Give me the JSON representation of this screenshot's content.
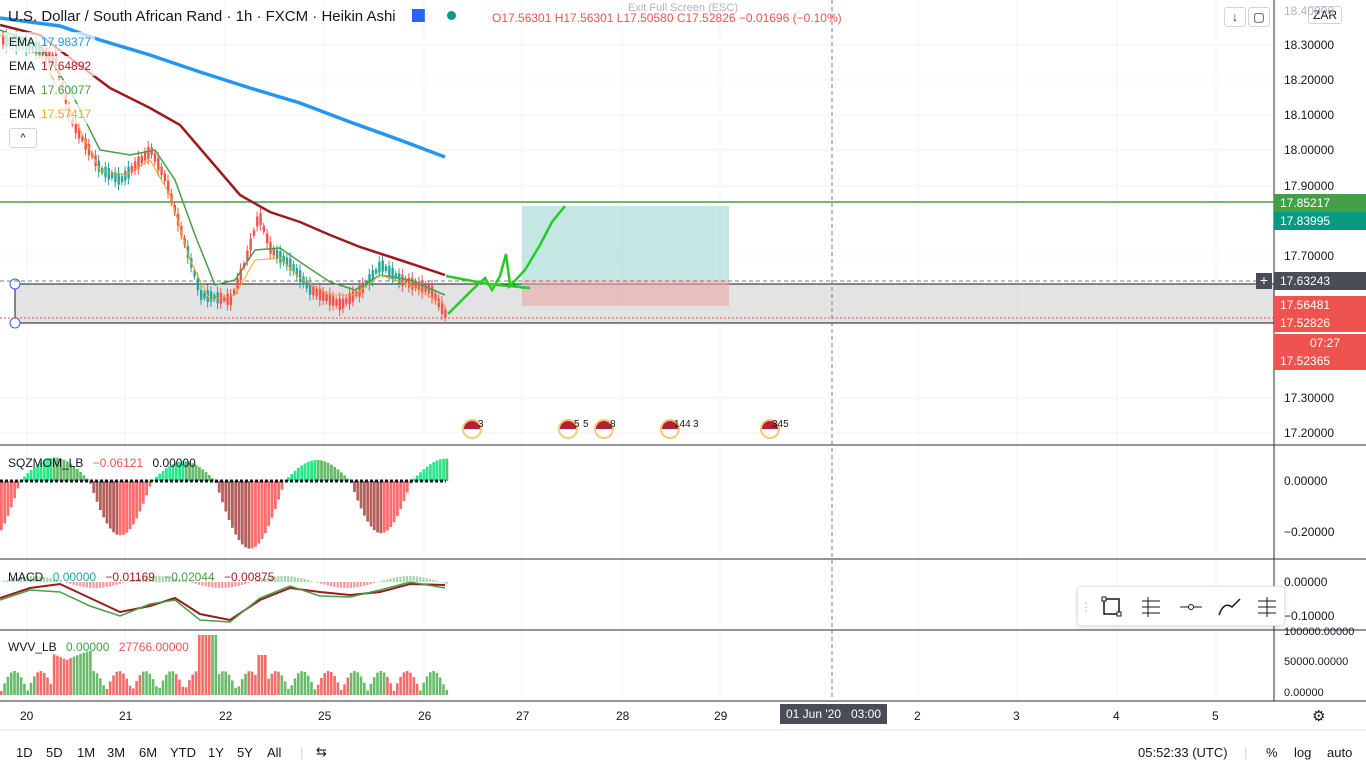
{
  "header": {
    "symbol": "U.S. Dollar / South African Rand · 1h · FXCM · Heikin Ashi",
    "ohlc": "O17.56301  H17.56301  L17.50580  C17.52826  −0.01696 (−0.10%)",
    "exit_fullscreen": "Exit Full Screen (ESC)",
    "currency": "ZAR"
  },
  "emas": [
    {
      "label": "EMA",
      "value": "17.98377",
      "color": "#2196f3"
    },
    {
      "label": "EMA",
      "value": "17.64892",
      "color": "#b71c1c"
    },
    {
      "label": "EMA",
      "value": "17.60077",
      "color": "#43a047"
    },
    {
      "label": "EMA",
      "value": "17.57417",
      "color": "#f6a623"
    }
  ],
  "collapse_label": "^",
  "price_axis": [
    "18.40000",
    "18.30000",
    "18.20000",
    "18.10000",
    "18.00000",
    "17.90000",
    "17.70000",
    "17.30000",
    "17.20000"
  ],
  "price_tags": [
    {
      "value": "17.85217",
      "color": "#43a047"
    },
    {
      "value": "17.83995",
      "color": "#089981"
    },
    {
      "value": "17.63243",
      "color": "#4a4d57"
    },
    {
      "value": "17.56481",
      "color": "#ef5350"
    },
    {
      "value": "17.52826",
      "color": "#ef5350"
    },
    {
      "value": "07:27",
      "color": "#ef5350"
    },
    {
      "value": "17.52365",
      "color": "#ef5350"
    }
  ],
  "events": [
    {
      "count": "3"
    },
    {
      "count": "5"
    },
    {
      "count": "5"
    },
    {
      "count": "8"
    },
    {
      "count": "144"
    },
    {
      "count": "3"
    },
    {
      "count": "345"
    }
  ],
  "sqz": {
    "name": "SQZMOM_LB",
    "v1": "−0.06121",
    "v2": "0.00000",
    "axis": [
      "0.00000",
      "−0.20000"
    ]
  },
  "macd": {
    "name": "MACD",
    "v1": "0.00000",
    "v2": "−0.01169",
    "v3": "−0.02044",
    "v4": "−0.00875",
    "axis": [
      "0.00000",
      "−0.10000"
    ]
  },
  "wvv": {
    "name": "WVV_LB",
    "v1": "0.00000",
    "v2": "27766.00000",
    "axis": [
      "100000.00000",
      "50000.00000",
      "0.00000"
    ]
  },
  "time_axis": [
    {
      "label": "20"
    },
    {
      "label": "21"
    },
    {
      "label": "22"
    },
    {
      "label": "25"
    },
    {
      "label": "26"
    },
    {
      "label": "27"
    },
    {
      "label": "28"
    },
    {
      "label": "29"
    },
    {
      "label": "2"
    },
    {
      "label": "3"
    },
    {
      "label": "4"
    },
    {
      "label": "5"
    }
  ],
  "crosshair_time": "01 Jun '20   03:00",
  "bottom": {
    "ranges": [
      "1D",
      "5D",
      "1M",
      "3M",
      "6M",
      "YTD",
      "1Y",
      "5Y",
      "All"
    ],
    "clock": "05:52:33 (UTC)",
    "percent": "%",
    "log": "log",
    "auto": "auto"
  }
}
